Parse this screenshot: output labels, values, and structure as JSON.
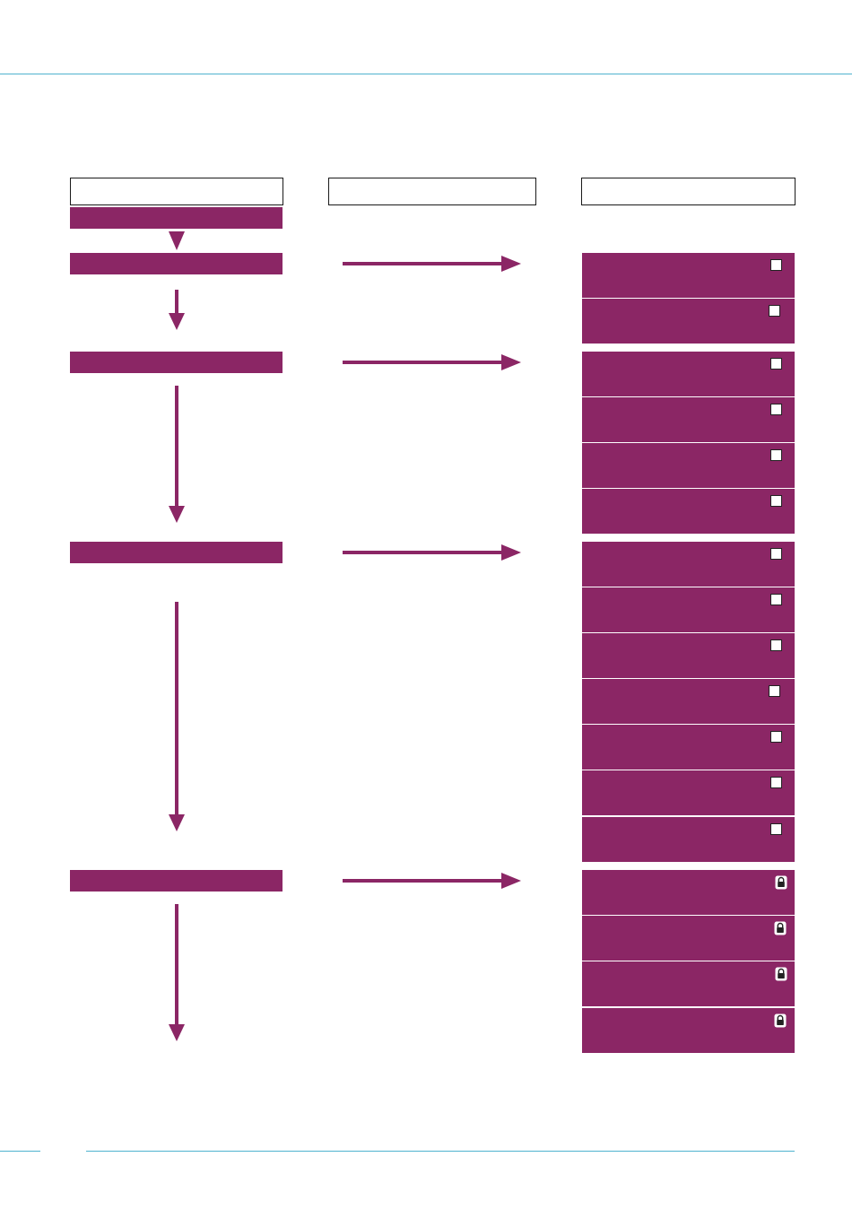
{
  "colors": {
    "accent": "#8b2665",
    "rule": "#4fb3cf",
    "border": "#1a1a1a"
  },
  "column_headers": [
    "",
    "",
    ""
  ],
  "stages": [
    {
      "label": ""
    },
    {
      "label": ""
    },
    {
      "label": ""
    },
    {
      "label": ""
    },
    {
      "label": ""
    }
  ],
  "panel_groups": [
    {
      "items": [
        {
          "text": "",
          "marker": "checkbox"
        },
        {
          "text": "",
          "marker": "checkbox"
        }
      ]
    },
    {
      "items": [
        {
          "text": "",
          "marker": "checkbox"
        },
        {
          "text": "",
          "marker": "checkbox"
        },
        {
          "text": "",
          "marker": "checkbox"
        },
        {
          "text": "",
          "marker": "checkbox"
        }
      ]
    },
    {
      "items": [
        {
          "text": "",
          "marker": "checkbox"
        },
        {
          "text": "",
          "marker": "checkbox"
        },
        {
          "text": "",
          "marker": "checkbox"
        },
        {
          "text": "",
          "marker": "checkbox"
        },
        {
          "text": "",
          "marker": "checkbox"
        },
        {
          "text": "",
          "marker": "checkbox"
        },
        {
          "text": "",
          "marker": "checkbox"
        }
      ]
    },
    {
      "items": [
        {
          "text": "",
          "marker": "lock-icon"
        },
        {
          "text": "",
          "marker": "lock-icon"
        },
        {
          "text": "",
          "marker": "lock-icon"
        },
        {
          "text": "",
          "marker": "lock-icon"
        }
      ]
    }
  ]
}
